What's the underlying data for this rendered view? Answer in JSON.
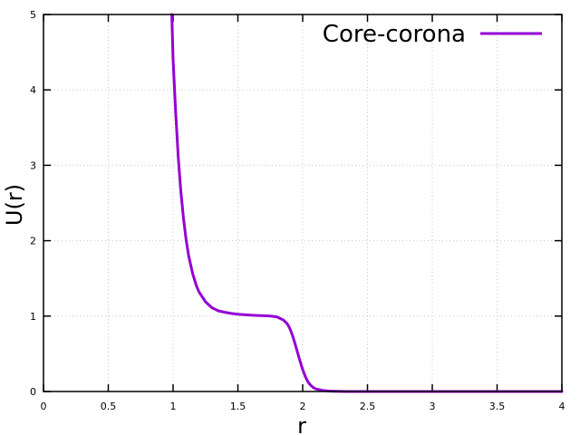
{
  "chart_data": {
    "type": "line",
    "title": "",
    "xlabel": "r",
    "ylabel": "U(r)",
    "xlim": [
      0,
      4
    ],
    "ylim": [
      0,
      5
    ],
    "xticks": [
      0,
      0.5,
      1,
      1.5,
      2,
      2.5,
      3,
      3.5,
      4
    ],
    "xtick_labels": [
      "0",
      "0.5",
      "1",
      "1.5",
      "2",
      "2.5",
      "3",
      "3.5",
      "4"
    ],
    "yticks": [
      0,
      1,
      2,
      3,
      4,
      5
    ],
    "ytick_labels": [
      "0",
      "1",
      "2",
      "3",
      "4",
      "5"
    ],
    "grid": true,
    "legend_position": "top-right",
    "series": [
      {
        "name": "Core-corona",
        "color": "#9400d3",
        "x": [
          0.99,
          1.0,
          1.02,
          1.04,
          1.06,
          1.08,
          1.1,
          1.12,
          1.15,
          1.18,
          1.2,
          1.25,
          1.3,
          1.35,
          1.4,
          1.45,
          1.5,
          1.55,
          1.6,
          1.65,
          1.7,
          1.75,
          1.8,
          1.85,
          1.88,
          1.9,
          1.92,
          1.94,
          1.96,
          1.98,
          2.0,
          2.02,
          2.04,
          2.06,
          2.08,
          2.1,
          2.15,
          2.2,
          2.25,
          2.3,
          2.4,
          2.5,
          3.0,
          3.5,
          4.0
        ],
        "y": [
          5.0,
          4.4,
          3.7,
          3.1,
          2.65,
          2.3,
          2.02,
          1.8,
          1.57,
          1.4,
          1.32,
          1.19,
          1.11,
          1.07,
          1.05,
          1.035,
          1.025,
          1.018,
          1.012,
          1.008,
          1.005,
          1.0,
          0.99,
          0.95,
          0.9,
          0.84,
          0.75,
          0.64,
          0.52,
          0.4,
          0.29,
          0.2,
          0.13,
          0.085,
          0.055,
          0.035,
          0.015,
          0.006,
          0.003,
          0.001,
          0.0,
          0.0,
          0.0,
          0.0,
          0.0
        ]
      }
    ]
  }
}
